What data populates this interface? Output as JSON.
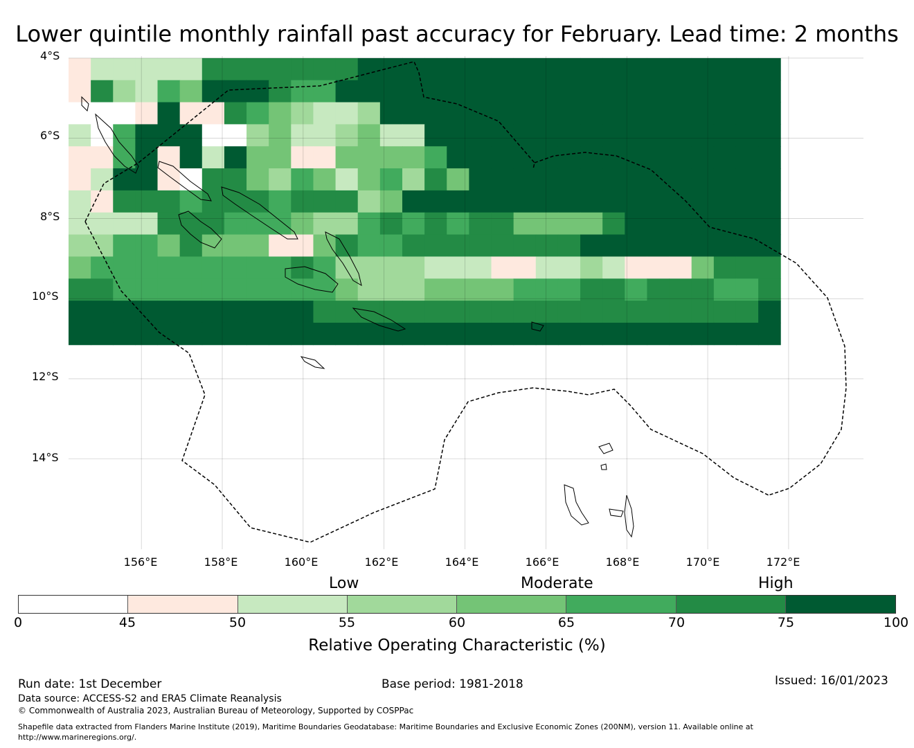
{
  "title": "Lower quintile monthly rainfall past accuracy for February. Lead time: 2 months",
  "map": {
    "lat_labels": [
      "4°S",
      "6°S",
      "8°S",
      "10°S",
      "12°S",
      "14°S"
    ],
    "lon_labels": [
      "156°E",
      "158°E",
      "160°E",
      "162°E",
      "164°E",
      "166°E",
      "168°E",
      "170°E",
      "172°E"
    ],
    "lat_range": [
      -16.25,
      -3.95
    ],
    "lon_range": [
      154.2,
      173.85
    ],
    "grid_origin": {
      "lon": 154.2,
      "lat": -4.0,
      "step_deg": 0.55
    },
    "grid_values": [
      "65555511111110000000000000000000",
      "61452300012200000000000000000000",
      "77760661234554000000000000000000",
      "57200077435543550000000000000000",
      "88206050336633332000000000000000",
      "65006711342353241300000000000000",
      "56111211121114300000000000000000",
      "55551112223442121211333310000000",
      "44223133366312211111111000000000",
      "32222222221244445556655456663111",
      "11222222222234443333222112111221",
      "00000000000111111111111111111110",
      "00000000000000000000000000000000"
    ],
    "colors": {
      "0": "#005a32",
      "1": "#238b45",
      "2": "#41ab5d",
      "3": "#74c476",
      "4": "#a1d99b",
      "5": "#c7e9c0",
      "6": "#fee9df",
      "7": "#ffffff",
      "8": "#fee9df"
    }
  },
  "colorbar": {
    "ticks": [
      "0",
      "45",
      "50",
      "55",
      "60",
      "65",
      "70",
      "75",
      "100"
    ],
    "segment_colors": [
      "#ffffff",
      "#fee9df",
      "#c7e9c0",
      "#a1d99b",
      "#74c476",
      "#41ab5d",
      "#238b45",
      "#005a32"
    ],
    "category_labels": [
      "Low",
      "Moderate",
      "High"
    ],
    "title": "Relative Operating Characteristic (%)"
  },
  "footer": {
    "run_date": "Run date: 1st December",
    "base_period": "Base period: 1981-2018",
    "issued": "Issued: 16/01/2023",
    "data_source": "Data source: ACCESS-S2 and ERA5 Climate Reanalysis",
    "copyright": "© Commonwealth of Australia 2023, Australian Bureau of Meteorology, Supported by COSPPac",
    "shapefile_line1": "Shapefile data extracted from Flanders Marine Institute (2019), Maritime Boundaries Geodatabase: Maritime Boundaries and Exclusive Economic Zones (200NM), version 11. Available online at",
    "shapefile_line2": "http://www.marineregions.org/."
  }
}
